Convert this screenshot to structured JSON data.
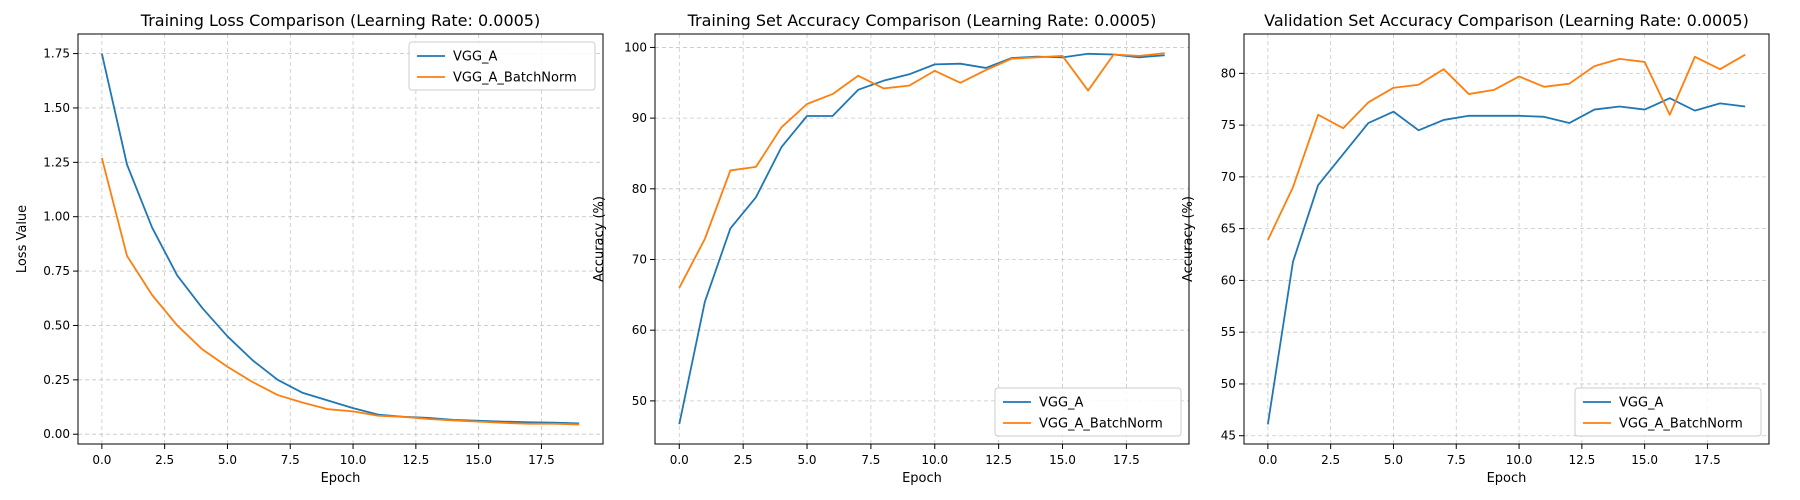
{
  "colors": {
    "vgg_a": "#1f77b4",
    "vgg_a_bn": "#ff7f0e",
    "grid": "#b0b0b0"
  },
  "chart_data": [
    {
      "type": "line",
      "title": "Training Loss Comparison (Learning Rate: 0.0005)",
      "xlabel": "Epoch",
      "ylabel": "Loss Value",
      "xlim": [
        -0.95,
        19.95
      ],
      "ylim": [
        -0.045,
        1.84
      ],
      "xticks": [
        0,
        2.5,
        5,
        7.5,
        10,
        12.5,
        15,
        17.5
      ],
      "xtick_labels": [
        "0.0",
        "2.5",
        "5.0",
        "7.5",
        "10.0",
        "12.5",
        "15.0",
        "17.5"
      ],
      "yticks": [
        0,
        0.25,
        0.5,
        0.75,
        1.0,
        1.25,
        1.5,
        1.75
      ],
      "ytick_labels": [
        "0.00",
        "0.25",
        "0.50",
        "0.75",
        "1.00",
        "1.25",
        "1.50",
        "1.75"
      ],
      "grid": true,
      "legend_position": "top-right",
      "x": [
        0,
        1,
        2,
        3,
        4,
        5,
        6,
        7,
        8,
        9,
        10,
        11,
        12,
        13,
        14,
        15,
        16,
        17,
        18,
        19
      ],
      "series": [
        {
          "name": "VGG_A",
          "color_key": "vgg_a",
          "values": [
            1.75,
            1.24,
            0.95,
            0.73,
            0.58,
            0.45,
            0.34,
            0.25,
            0.19,
            0.155,
            0.12,
            0.09,
            0.08,
            0.075,
            0.066,
            0.062,
            0.058,
            0.055,
            0.053,
            0.05
          ]
        },
        {
          "name": "VGG_A_BatchNorm",
          "color_key": "vgg_a_bn",
          "values": [
            1.27,
            0.82,
            0.64,
            0.5,
            0.39,
            0.31,
            0.24,
            0.18,
            0.145,
            0.115,
            0.105,
            0.085,
            0.08,
            0.07,
            0.063,
            0.058,
            0.052,
            0.048,
            0.048,
            0.045
          ]
        }
      ]
    },
    {
      "type": "line",
      "title": "Training Set Accuracy Comparison (Learning Rate: 0.0005)",
      "xlabel": "Epoch",
      "ylabel": "Accuracy (%)",
      "xlim": [
        -0.95,
        19.95
      ],
      "ylim": [
        43.9,
        101.9
      ],
      "xticks": [
        0,
        2.5,
        5,
        7.5,
        10,
        12.5,
        15,
        17.5
      ],
      "xtick_labels": [
        "0.0",
        "2.5",
        "5.0",
        "7.5",
        "10.0",
        "12.5",
        "15.0",
        "17.5"
      ],
      "yticks": [
        50,
        60,
        70,
        80,
        90,
        100
      ],
      "ytick_labels": [
        "50",
        "60",
        "70",
        "80",
        "90",
        "100"
      ],
      "grid": true,
      "legend_position": "bottom-right",
      "x": [
        0,
        1,
        2,
        3,
        4,
        5,
        6,
        7,
        8,
        9,
        10,
        11,
        12,
        13,
        14,
        15,
        16,
        17,
        18,
        19
      ],
      "series": [
        {
          "name": "VGG_A",
          "color_key": "vgg_a",
          "values": [
            46.7,
            64.0,
            74.4,
            78.8,
            85.9,
            90.3,
            90.3,
            94.0,
            95.3,
            96.2,
            97.6,
            97.7,
            97.1,
            98.5,
            98.7,
            98.6,
            99.1,
            99.0,
            98.6,
            98.9
          ]
        },
        {
          "name": "VGG_A_BatchNorm",
          "color_key": "vgg_a_bn",
          "values": [
            66.0,
            72.9,
            82.6,
            83.1,
            88.7,
            92.0,
            93.4,
            96.0,
            94.2,
            94.6,
            96.7,
            95.0,
            96.8,
            98.4,
            98.6,
            98.8,
            93.9,
            99.0,
            98.8,
            99.2
          ]
        }
      ]
    },
    {
      "type": "line",
      "title": "Validation Set Accuracy Comparison (Learning Rate: 0.0005)",
      "xlabel": "Epoch",
      "ylabel": "Accuracy (%)",
      "xlim": [
        -0.95,
        19.95
      ],
      "ylim": [
        44.2,
        83.8
      ],
      "xticks": [
        0,
        2.5,
        5,
        7.5,
        10,
        12.5,
        15,
        17.5
      ],
      "xtick_labels": [
        "0.0",
        "2.5",
        "5.0",
        "7.5",
        "10.0",
        "12.5",
        "15.0",
        "17.5"
      ],
      "yticks": [
        45,
        50,
        55,
        60,
        65,
        70,
        75,
        80
      ],
      "ytick_labels": [
        "45",
        "50",
        "55",
        "60",
        "65",
        "70",
        "75",
        "80"
      ],
      "grid": true,
      "legend_position": "bottom-right",
      "x": [
        0,
        1,
        2,
        3,
        4,
        5,
        6,
        7,
        8,
        9,
        10,
        11,
        12,
        13,
        14,
        15,
        16,
        17,
        18,
        19
      ],
      "series": [
        {
          "name": "VGG_A",
          "color_key": "vgg_a",
          "values": [
            46.1,
            61.8,
            69.2,
            72.2,
            75.2,
            76.3,
            74.5,
            75.5,
            75.9,
            75.9,
            75.9,
            75.8,
            75.2,
            76.5,
            76.8,
            76.5,
            77.6,
            76.4,
            77.1,
            76.8
          ]
        },
        {
          "name": "VGG_A_BatchNorm",
          "color_key": "vgg_a_bn",
          "values": [
            63.9,
            69.0,
            76.0,
            74.7,
            77.2,
            78.6,
            78.9,
            80.4,
            78.0,
            78.4,
            79.7,
            78.7,
            79.0,
            80.7,
            81.4,
            81.1,
            76.0,
            81.6,
            80.4,
            81.8
          ]
        }
      ]
    }
  ]
}
